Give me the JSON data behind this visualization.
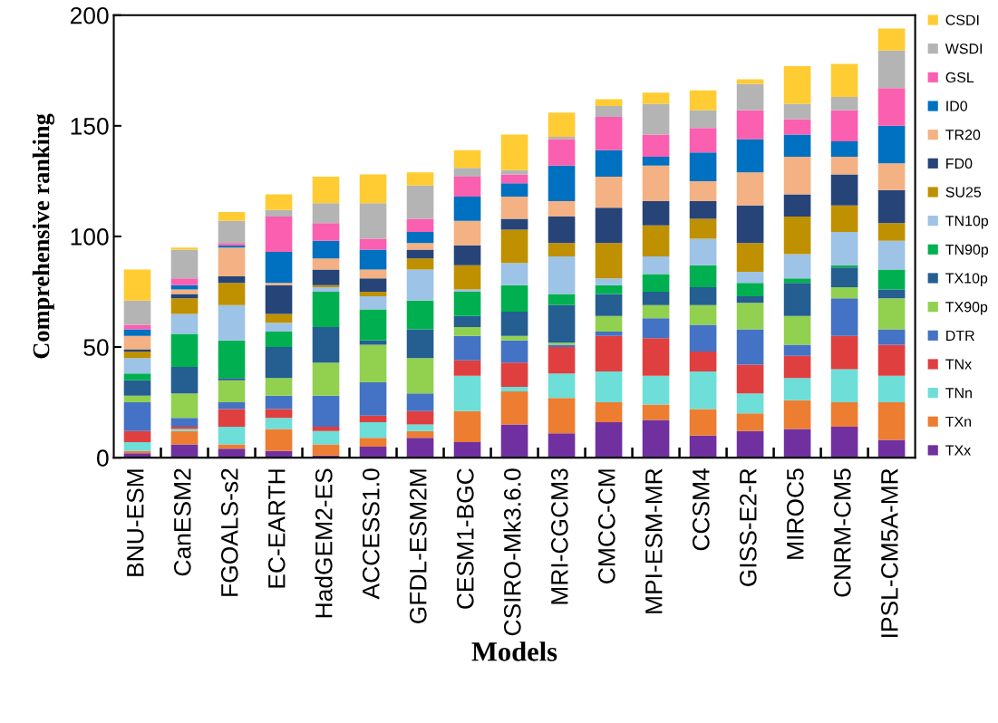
{
  "chart_data": {
    "type": "bar",
    "stacked": true,
    "xlabel": "Models",
    "ylabel": "Comprehensive ranking",
    "categories": [
      "BNU-ESM",
      "CanESM2",
      "FGOALS-s2",
      "EC-EARTH",
      "HadGEM2-ES",
      "ACCESS1.0",
      "GFDL-ESM2M",
      "CESM1-BGC",
      "CSIRO-Mk3.6.0",
      "MRI-CGCM3",
      "CMCC-CM",
      "MPI-ESM-MR",
      "CCSM4",
      "GISS-E2-R",
      "MIROC5",
      "CNRM-CM5",
      "IPSL-CM5A-MR"
    ],
    "series": [
      {
        "name": "TXx",
        "color": "#7030a0",
        "values": [
          2,
          6,
          4,
          3,
          1,
          5,
          9,
          7,
          15,
          11,
          16,
          17,
          10,
          12,
          13,
          14,
          8
        ]
      },
      {
        "name": "TXn",
        "color": "#ed7d31",
        "values": [
          1,
          6,
          2,
          10,
          5,
          4,
          3,
          14,
          15,
          16,
          9,
          7,
          12,
          8,
          13,
          11,
          17
        ]
      },
      {
        "name": "TNn",
        "color": "#6dded8",
        "values": [
          4,
          1,
          8,
          5,
          6,
          7,
          3,
          16,
          2,
          11,
          14,
          13,
          17,
          9,
          10,
          15,
          12
        ]
      },
      {
        "name": "TNx",
        "color": "#e03f3f",
        "values": [
          5,
          1,
          8,
          4,
          2,
          3,
          6,
          7,
          11,
          12,
          16,
          17,
          9,
          13,
          10,
          15,
          14
        ]
      },
      {
        "name": "DTR",
        "color": "#4472c4",
        "values": [
          13,
          4,
          3,
          6,
          14,
          15,
          8,
          11,
          10,
          1,
          2,
          9,
          12,
          16,
          5,
          17,
          7
        ]
      },
      {
        "name": "TX90p",
        "color": "#92d050",
        "values": [
          3,
          11,
          10,
          8,
          15,
          17,
          16,
          4,
          2,
          1,
          7,
          6,
          9,
          12,
          13,
          5,
          14
        ]
      },
      {
        "name": "TX10p",
        "color": "#255e91",
        "values": [
          7,
          12,
          1,
          14,
          16,
          2,
          13,
          5,
          11,
          17,
          10,
          6,
          8,
          3,
          15,
          9,
          4
        ]
      },
      {
        "name": "TN90p",
        "color": "#00b050",
        "values": [
          3,
          15,
          17,
          7,
          16,
          14,
          13,
          11,
          12,
          5,
          4,
          8,
          10,
          6,
          2,
          1,
          9
        ]
      },
      {
        "name": "TN10p",
        "color": "#9dc3e6",
        "values": [
          7,
          9,
          16,
          4,
          2,
          6,
          14,
          1,
          10,
          17,
          3,
          8,
          12,
          5,
          11,
          15,
          13
        ]
      },
      {
        "name": "SU25",
        "color": "#bf9000",
        "values": [
          3,
          7,
          10,
          4,
          1,
          2,
          5,
          11,
          15,
          6,
          16,
          14,
          9,
          13,
          17,
          12,
          8
        ]
      },
      {
        "name": "FD0",
        "color": "#264478",
        "values": [
          1,
          2,
          3,
          13,
          7,
          6,
          4,
          9,
          5,
          12,
          16,
          11,
          8,
          17,
          10,
          14,
          15
        ]
      },
      {
        "name": "TR20",
        "color": "#f4b183",
        "values": [
          6,
          2,
          13,
          1,
          5,
          4,
          3,
          11,
          10,
          7,
          14,
          16,
          9,
          15,
          17,
          8,
          12
        ]
      },
      {
        "name": "ID0",
        "color": "#0070c0",
        "values": [
          3,
          2,
          1,
          14,
          8,
          9,
          5,
          11,
          6,
          16,
          12,
          4,
          13,
          15,
          10,
          7,
          17
        ]
      },
      {
        "name": "GSL",
        "color": "#fb5fb0",
        "values": [
          2,
          3,
          1,
          16,
          8,
          5,
          6,
          9,
          4,
          12,
          15,
          10,
          11,
          13,
          7,
          14,
          17
        ]
      },
      {
        "name": "WSDI",
        "color": "#b4b4b4",
        "values": [
          11,
          13,
          10,
          3,
          9,
          16,
          15,
          4,
          2,
          1,
          5,
          14,
          8,
          12,
          7,
          6,
          17
        ]
      },
      {
        "name": "CSDI",
        "color": "#ffcc33",
        "values": [
          14,
          1,
          4,
          7,
          12,
          13,
          6,
          8,
          16,
          11,
          3,
          5,
          9,
          2,
          17,
          15,
          10
        ]
      }
    ],
    "ylim": [
      0,
      200
    ],
    "yticks": [
      0,
      50,
      100,
      150,
      200
    ],
    "legend": "right"
  }
}
